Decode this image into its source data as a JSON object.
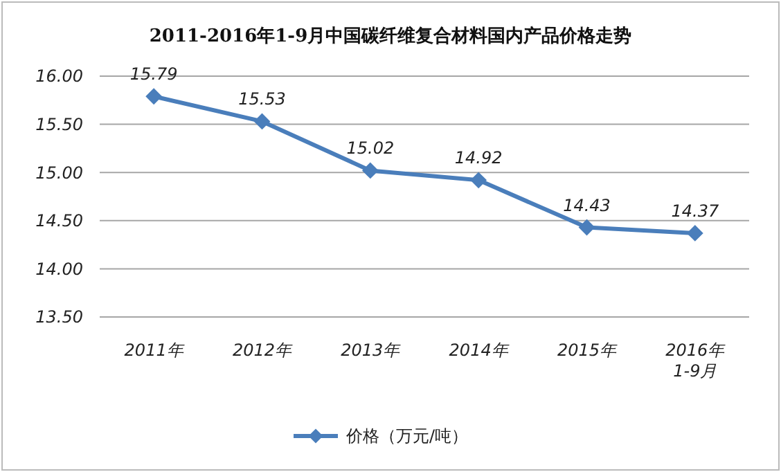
{
  "chart_data": {
    "type": "line",
    "title": "2011-2016年1-9月中国碳纤维复合材料国内产品价格走势",
    "categories": [
      "2011年",
      "2012年",
      "2013年",
      "2014年",
      "2015年",
      "2016年\n1-9月"
    ],
    "series": [
      {
        "name": "价格（万元/吨）",
        "color": "#4a7ebb",
        "values": [
          15.79,
          15.53,
          15.02,
          14.92,
          14.43,
          14.37
        ]
      }
    ],
    "ylim": [
      13.5,
      16.0
    ],
    "yticks": [
      {
        "value": 13.5,
        "label": "13.50"
      },
      {
        "value": 14.0,
        "label": "14.00"
      },
      {
        "value": 14.5,
        "label": "14.50"
      },
      {
        "value": 15.0,
        "label": "15.00"
      },
      {
        "value": 15.5,
        "label": "15.50"
      },
      {
        "value": 16.0,
        "label": "16.00"
      }
    ],
    "grid": "y",
    "legend": "bottom",
    "marker": "diamond",
    "line_style": "solid",
    "data_labels": true
  }
}
